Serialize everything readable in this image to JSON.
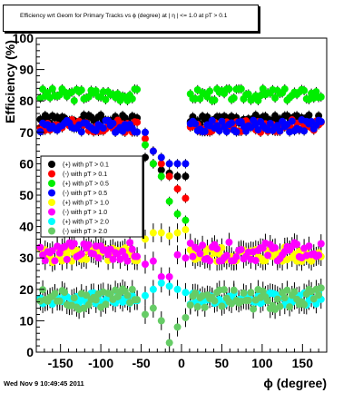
{
  "title": "Efficiency wrt Geom for Primary Tracks vs ϕ (degree) at | η | <= 1.0 at pT > 0.1",
  "datestamp": "Wed Nov  9 10:49:45 2011",
  "chart_data": {
    "type": "scatter",
    "title": "Efficiency wrt Geom for Primary Tracks vs ϕ (degree) at | η | <= 1.0 at pT > 0.1",
    "xlabel": "ϕ (degree)",
    "ylabel": "Efficiency (%)",
    "xlim": [
      -180,
      180
    ],
    "ylim": [
      0,
      100
    ],
    "xticks": [
      -150,
      -100,
      -50,
      0,
      50,
      100,
      150
    ],
    "yticks": [
      0,
      10,
      20,
      30,
      40,
      50,
      60,
      70,
      80,
      90,
      100
    ],
    "grid": false,
    "legend_position": "left, middle",
    "series": [
      {
        "name": "(+) with pT > 0.1",
        "color": "#000000",
        "y_base": 74,
        "amp": 1.5,
        "seed": 1,
        "gap": [
          62,
          60,
          58,
          57,
          56,
          56
        ]
      },
      {
        "name": "(-) with pT > 0.1",
        "color": "#ff0000",
        "y_base": 72,
        "amp": 2.0,
        "seed": 2,
        "gap": [
          68,
          64,
          60,
          56,
          52,
          49
        ]
      },
      {
        "name": "(+) with pT > 0.5",
        "color": "#00ee00",
        "y_base": 82,
        "amp": 2.0,
        "seed": 3,
        "gap": [
          66,
          60,
          56,
          48,
          44,
          42
        ]
      },
      {
        "name": "(-) with pT > 0.5",
        "color": "#0000ff",
        "y_base": 72,
        "amp": 2.0,
        "seed": 4,
        "gap": [
          70,
          64,
          62,
          60,
          60,
          60
        ]
      },
      {
        "name": "(+) with pT > 1.0",
        "color": "#ffff00",
        "y_base": 31,
        "amp": 2.5,
        "seed": 5,
        "gap": [
          36,
          38,
          38,
          37,
          38,
          39
        ]
      },
      {
        "name": "(-) with pT > 1.0",
        "color": "#ff00ff",
        "y_base": 32,
        "amp": 3.0,
        "seed": 6,
        "gap": [
          28,
          29,
          24,
          24,
          31,
          30
        ]
      },
      {
        "name": "(+) with pT > 2.0",
        "color": "#00ffff",
        "y_base": 17,
        "amp": 2.0,
        "seed": 7,
        "gap": [
          18,
          20,
          22,
          21,
          20,
          19
        ]
      },
      {
        "name": "(-) with pT > 2.0",
        "color": "#66cc66",
        "y_base": 17,
        "amp": 3.5,
        "seed": 8,
        "gap": [
          12,
          14,
          10,
          3,
          8,
          11
        ]
      }
    ]
  }
}
